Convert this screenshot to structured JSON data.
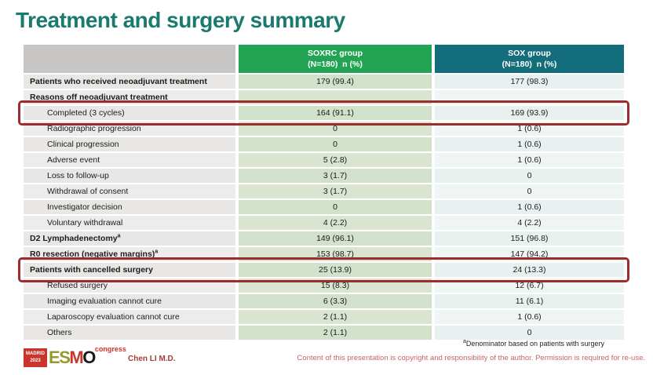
{
  "slide": {
    "title": "Treatment and surgery summary",
    "footnote": {
      "sup": "a",
      "text": "Denominator based on patients with surgery"
    },
    "author": "Chen LI M.D.",
    "copyright": "Content of this presentation is copyright and responsibility of the author. Permission is required for re-use.",
    "logo": {
      "city": "MADRID",
      "year": "2023",
      "e": "E",
      "s": "S",
      "m": "M",
      "o": "O",
      "congress": "congress"
    }
  },
  "table": {
    "header": {
      "soxrc": {
        "name": "SOXRC group",
        "sub": "(N=180)  n (%)"
      },
      "sox": {
        "name": "SOX group",
        "sub": "(N=180)  n (%)"
      }
    },
    "rows": [
      {
        "label": "Patients who received neoadjuvant treatment",
        "soxrc": "179 (99.4)",
        "sox": "177 (98.3)",
        "bold": true
      },
      {
        "label": "Reasons off neoadjuvant treatment",
        "soxrc": "",
        "sox": "",
        "bold": true
      },
      {
        "label": "Completed (3 cycles)",
        "soxrc": "164 (91.1)",
        "sox": "169 (93.9)",
        "indent": true,
        "highlight": true
      },
      {
        "label": "Radiographic progression",
        "soxrc": "0",
        "sox": "1 (0.6)",
        "indent": true
      },
      {
        "label": "Clinical progression",
        "soxrc": "0",
        "sox": "1 (0.6)",
        "indent": true
      },
      {
        "label": "Adverse event",
        "soxrc": "5 (2.8)",
        "sox": "1 (0.6)",
        "indent": true
      },
      {
        "label": "Loss to follow-up",
        "soxrc": "3 (1.7)",
        "sox": "0",
        "indent": true
      },
      {
        "label": "Withdrawal of consent",
        "soxrc": "3 (1.7)",
        "sox": "0",
        "indent": true
      },
      {
        "label": "Investigator decision",
        "soxrc": "0",
        "sox": "1 (0.6)",
        "indent": true
      },
      {
        "label": "Voluntary withdrawal",
        "soxrc": "4 (2.2)",
        "sox": "4 (2.2)",
        "indent": true
      },
      {
        "label": "D2 Lymphadenectomy",
        "sup": "a",
        "soxrc": "149 (96.1)",
        "sox": "151 (96.8)",
        "bold": true
      },
      {
        "label": "R0 resection (negative margins)",
        "sup": "a",
        "soxrc": "153 (98.7)",
        "sox": "147 (94.2)",
        "bold": true
      },
      {
        "label": "Patients with cancelled surgery",
        "soxrc": "25 (13.9)",
        "sox": "24 (13.3)",
        "bold": true,
        "highlight": true
      },
      {
        "label": "Refused surgery",
        "soxrc": "15 (8.3)",
        "sox": "12 (6.7)",
        "indent": true
      },
      {
        "label": "Imaging evaluation cannot cure",
        "soxrc": "6 (3.3)",
        "sox": "11 (6.1)",
        "indent": true
      },
      {
        "label": "Laparoscopy evaluation cannot cure",
        "soxrc": "2 (1.1)",
        "sox": "1 (0.6)",
        "indent": true
      },
      {
        "label": "Others",
        "soxrc": "2 (1.1)",
        "sox": "0",
        "indent": true
      }
    ]
  },
  "colors": {
    "title": "#1b7a6e",
    "header_soxrc": "#23a455",
    "header_sox": "#146d7b",
    "highlight_border": "#9c2d2d",
    "accent_red": "#c9342c"
  }
}
